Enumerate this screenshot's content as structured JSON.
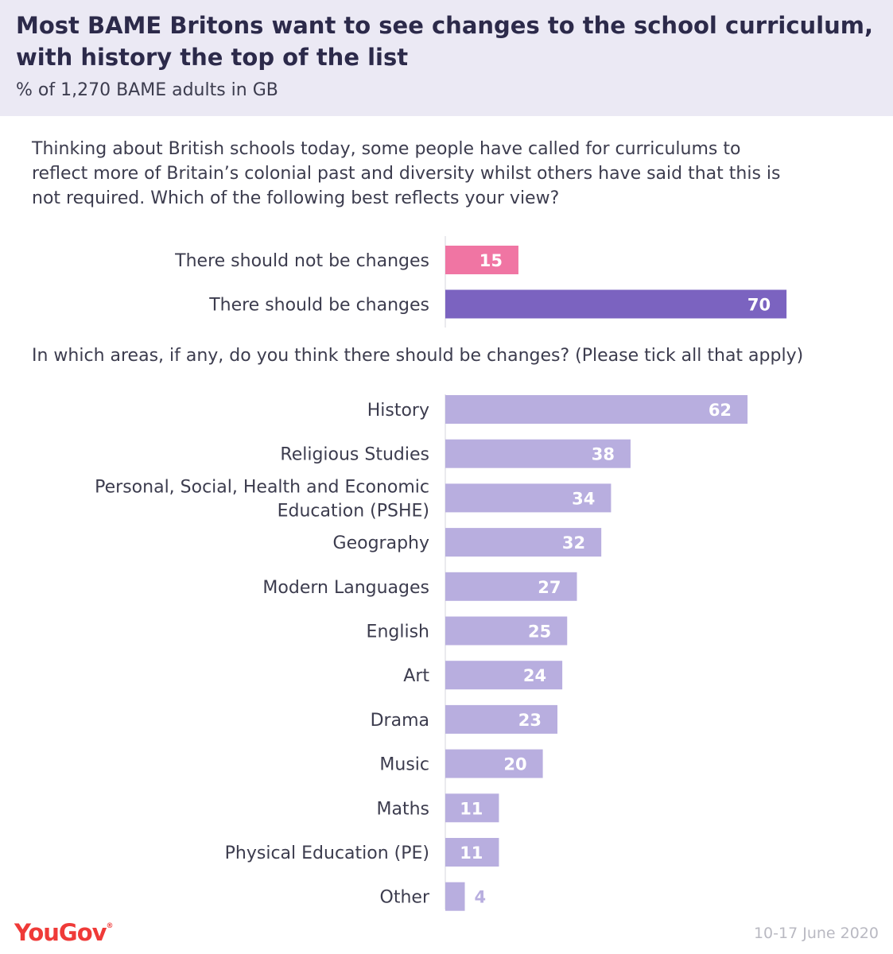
{
  "header": {
    "title": "Most BAME Britons want to see changes to the school curriculum, with history the top of the list",
    "subtitle": "% of 1,270 BAME adults in GB"
  },
  "footer": {
    "brand": "YouGov",
    "date": "10-17 June 2020"
  },
  "colors": {
    "header_bg": "#ebe9f4",
    "no_changes": "#f075a3",
    "changes": "#7b63c0",
    "areas": "#b8aedf",
    "brand": "#ef3a38"
  },
  "chart_data": [
    {
      "type": "bar",
      "orientation": "horizontal",
      "question": "Thinking about British schools today, some people have called for curriculums to reflect more of Britain’s colonial past and diversity whilst others have said that this is not required. Which of the following best reflects your view?",
      "categories": [
        "There should not be changes",
        "There should be changes"
      ],
      "values": [
        15,
        70
      ],
      "colors": [
        "#f075a3",
        "#7b63c0"
      ],
      "xlim": [
        0,
        100
      ]
    },
    {
      "type": "bar",
      "orientation": "horizontal",
      "question": "In which areas, if any, do you think there should be changes? (Please tick all that apply)",
      "categories": [
        [
          "History"
        ],
        [
          "Religious Studies"
        ],
        [
          "Personal, Social, Health and Economic",
          "Education (PSHE)"
        ],
        [
          "Geography"
        ],
        [
          "Modern Languages"
        ],
        [
          "English"
        ],
        [
          "Art"
        ],
        [
          "Drama"
        ],
        [
          "Music"
        ],
        [
          "Maths"
        ],
        [
          "Physical Education (PE)"
        ],
        [
          "Other"
        ]
      ],
      "values": [
        62,
        38,
        34,
        32,
        27,
        25,
        24,
        23,
        20,
        11,
        11,
        4
      ],
      "color": "#b8aedf",
      "xlim": [
        0,
        100
      ]
    }
  ]
}
